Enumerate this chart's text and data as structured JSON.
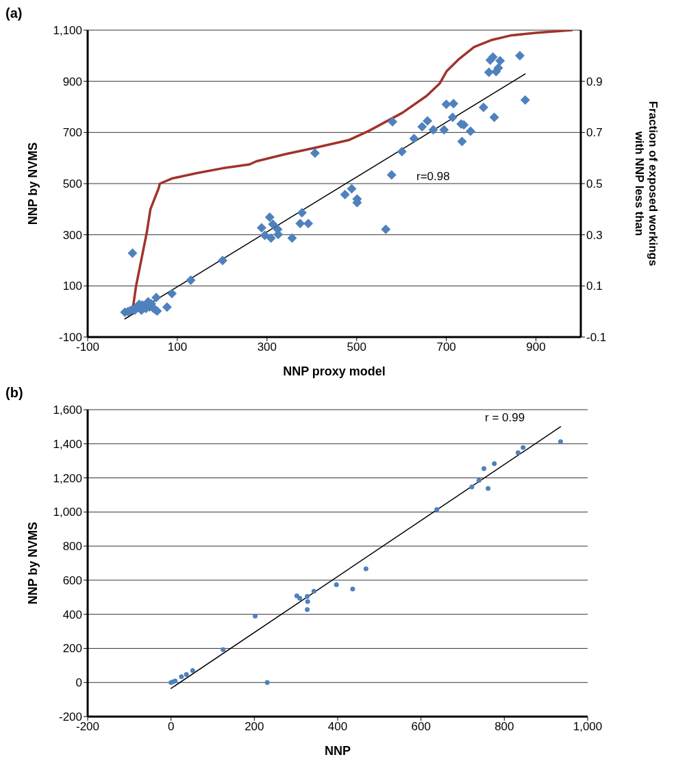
{
  "chart_data": [
    {
      "type": "scatter",
      "title": "(a)",
      "xlabel": "NNP proxy model",
      "ylabel": "NNP by NVMS",
      "y2label": "Fraction of exposed workings with NNP less than",
      "xlim": [
        -100,
        1000
      ],
      "xticks": [
        -100,
        100,
        300,
        500,
        700,
        900
      ],
      "ylim": [
        -100,
        1100
      ],
      "yticks": [
        -100,
        100,
        300,
        500,
        700,
        900,
        {
          "value": 1100,
          "label": "1,100"
        }
      ],
      "y2lim": [
        -0.1,
        1.1
      ],
      "y2ticks": [
        -0.1,
        0.1,
        0.3,
        0.5,
        0.7,
        0.9
      ],
      "grid": "y",
      "legend": false,
      "annotations": [
        "r=0.98"
      ],
      "series": [
        {
          "type": "scatter",
          "marker": "diamond",
          "color": "#4f81bd",
          "x": [
            -17,
            -10,
            -5,
            0,
            5,
            8,
            15,
            20,
            22,
            30,
            35,
            38,
            42,
            45,
            50,
            53,
            55,
            0,
            77,
            88,
            130,
            201,
            288,
            306,
            313,
            295,
            309,
            325,
            324,
            356,
            378,
            374,
            392,
            407,
            580,
            601,
            578,
            565,
            474,
            489,
            501,
            501,
            628,
            646,
            658,
            671,
            695,
            700,
            716,
            714,
            733,
            739,
            735,
            754,
            783,
            807,
            798,
            804,
            820,
            795,
            811,
            816,
            864,
            876
          ],
          "values": [
            -3,
            0,
            3,
            8,
            5,
            15,
            28,
            5,
            25,
            12,
            38,
            18,
            30,
            15,
            8,
            55,
            2,
            228,
            17,
            70,
            122,
            199,
            327,
            369,
            341,
            298,
            287,
            301,
            321,
            287,
            386,
            344,
            344,
            619,
            742,
            625,
            534,
            321,
            457,
            480,
            440,
            426,
            676,
            722,
            745,
            710,
            710,
            810,
            813,
            759,
            733,
            730,
            665,
            705,
            798,
            759,
            983,
            995,
            980,
            935,
            938,
            952,
            1000,
            827
          ]
        },
        {
          "type": "line",
          "marker": "none",
          "color": "#000000",
          "x": [
            -17,
            876
          ],
          "values": [
            -29,
            929
          ]
        },
        {
          "type": "line",
          "marker": "none",
          "axis": "y2",
          "color": "#a0332c",
          "x": [
            1,
            8,
            32,
            40,
            58,
            61,
            88,
            141,
            201,
            261,
            276,
            341,
            407,
            482,
            527,
            602,
            656,
            685,
            701,
            727,
            762,
            802,
            843,
            903,
            980
          ],
          "values": [
            0.014,
            0.1,
            0.31,
            0.4,
            0.48,
            0.5,
            0.52,
            0.54,
            0.56,
            0.575,
            0.587,
            0.615,
            0.64,
            0.67,
            0.706,
            0.777,
            0.843,
            0.891,
            0.94,
            0.985,
            1.034,
            1.062,
            1.079,
            1.09,
            1.1
          ]
        }
      ]
    },
    {
      "type": "scatter",
      "title": "(b)",
      "xlabel": "NNP",
      "ylabel": "NNP by NVMS",
      "xlim": [
        -200,
        1000
      ],
      "xticks": [
        -200,
        0,
        200,
        400,
        600,
        800,
        {
          "value": 1000,
          "label": "1,000"
        }
      ],
      "ylim": [
        -200,
        1600
      ],
      "yticks": [
        -200,
        0,
        200,
        400,
        600,
        800,
        {
          "value": 1000,
          "label": "1,000"
        },
        {
          "value": 1200,
          "label": "1,200"
        },
        {
          "value": 1400,
          "label": "1,400"
        },
        {
          "value": 1600,
          "label": "1,600"
        }
      ],
      "grid": "y",
      "legend": false,
      "annotations": [
        "r = 0.99"
      ],
      "series": [
        {
          "type": "scatter",
          "marker": "circle",
          "color": "#4f81bd",
          "x": [
            0,
            5,
            10,
            25,
            37,
            52,
            125,
            202,
            231,
            302,
            309,
            327,
            328,
            327,
            343,
            397,
            436,
            468,
            638,
            722,
            739,
            761,
            751,
            776,
            833,
            845,
            935
          ],
          "values": [
            0,
            4,
            9,
            34,
            47,
            70,
            193,
            390,
            0,
            508,
            494,
            505,
            475,
            428,
            535,
            573,
            548,
            667,
            1014,
            1147,
            1185,
            1138,
            1254,
            1284,
            1348,
            1378,
            1412
          ]
        },
        {
          "type": "line",
          "marker": "none",
          "color": "#000000",
          "x": [
            0,
            935
          ],
          "values": [
            -35,
            1500
          ]
        }
      ]
    }
  ]
}
